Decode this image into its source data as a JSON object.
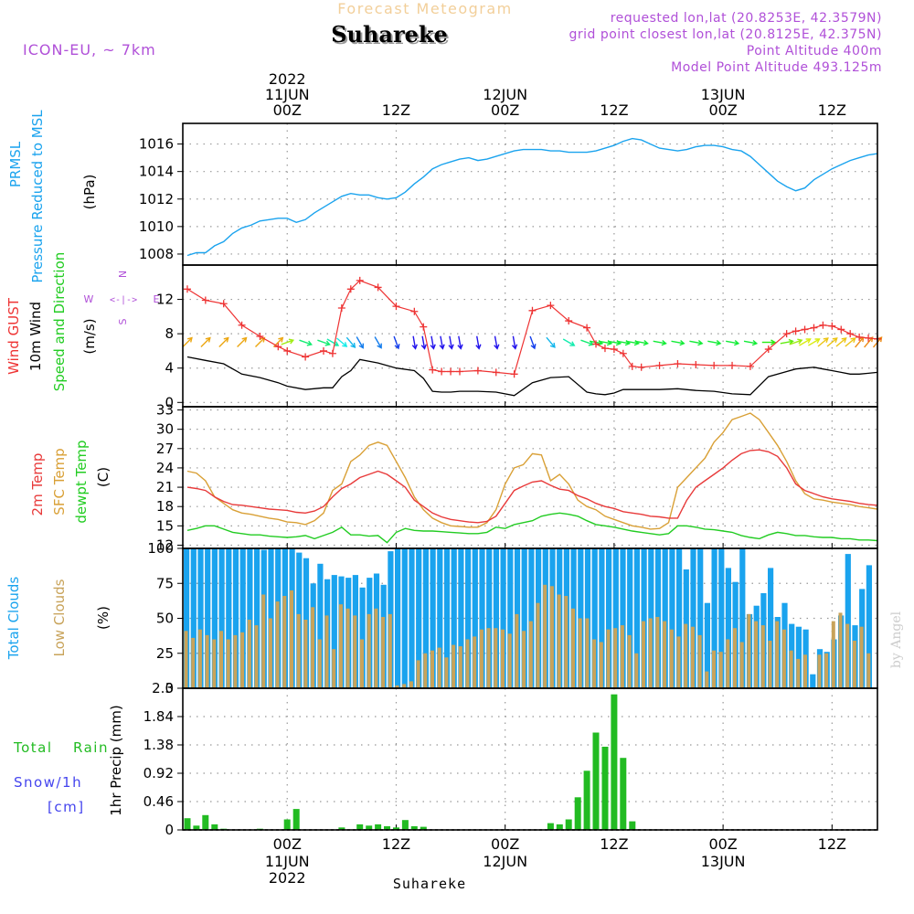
{
  "header": {
    "subtitle": "Forecast Meteogram",
    "location": "Suhareke",
    "model": "ICON-EU, ~ 7km",
    "requested": "requested lon,lat (20.8253E, 42.3579N)",
    "gridpoint": "grid point closest lon,lat (20.8125E, 42.375N)",
    "point_alt": "Point Altitude 400m",
    "model_alt": "Model Point Altitude 493.125m",
    "footer_location": "Suhareke",
    "watermark": "by Angel"
  },
  "time_axis": {
    "top_year": "2022",
    "bottom_year": "2022",
    "ticks": [
      {
        "hour": 0,
        "label": "00Z",
        "date": "11JUN"
      },
      {
        "hour": 12,
        "label": "12Z",
        "date": ""
      },
      {
        "hour": 24,
        "label": "00Z",
        "date": "12JUN"
      },
      {
        "hour": 36,
        "label": "12Z",
        "date": ""
      },
      {
        "hour": 48,
        "label": "00Z",
        "date": "13JUN"
      },
      {
        "hour": 60,
        "label": "12Z",
        "date": ""
      }
    ],
    "range_hours": [
      -11.5,
      65
    ]
  },
  "panel_labels": {
    "p1": [
      "PRMSL",
      "Pressure Reduced to MSL",
      "(hPa)"
    ],
    "p2": [
      "Wind GUST",
      "10m Wind",
      "Speed and Direction",
      "(m/s)"
    ],
    "p2_compass": {
      "n": "N",
      "s": "S",
      "w": "W",
      "e": "E"
    },
    "p3": [
      "2m Temp",
      "SFC Temp",
      "dewpt Temp",
      "(C)"
    ],
    "p4": [
      "Total Clouds",
      "Low Clouds",
      "(%)"
    ],
    "p5": [
      "Total",
      "Rain",
      "Snow/1h",
      "[cm]",
      "1hr Precip (mm)"
    ]
  },
  "colors": {
    "pressure": "#1aa3ee",
    "gust": "#ee3333",
    "wind": "#000000",
    "temp2m": "#e83a3a",
    "sfctemp": "#d9a036",
    "dewpt": "#22cc22",
    "total_clouds": "#1aa3ee",
    "low_clouds": "#c8a35a",
    "rain": "#22bb22",
    "snow": "#4444ee",
    "purple": "#b050d8"
  },
  "chart_data": [
    {
      "type": "line",
      "name": "pressure",
      "ylim": [
        1007.2,
        1017.5
      ],
      "yticks": [
        1008,
        1010,
        1012,
        1014,
        1016
      ],
      "x": [
        -11,
        -10,
        -9,
        -8,
        -7,
        -6,
        -5,
        -4,
        -3,
        -2,
        -1,
        0,
        1,
        2,
        3,
        4,
        5,
        6,
        7,
        8,
        9,
        10,
        11,
        12,
        13,
        14,
        15,
        16,
        17,
        18,
        19,
        20,
        21,
        22,
        23,
        24,
        25,
        26,
        27,
        28,
        29,
        30,
        31,
        32,
        33,
        34,
        35,
        36,
        37,
        38,
        39,
        40,
        41,
        42,
        43,
        44,
        45,
        46,
        47,
        48,
        49,
        50,
        51,
        52,
        53,
        54,
        55,
        56,
        57,
        58,
        59,
        60,
        61,
        62,
        63,
        64,
        65
      ],
      "y": [
        1007.9,
        1008.1,
        1008.1,
        1008.6,
        1008.9,
        1009.5,
        1009.9,
        1010.1,
        1010.4,
        1010.5,
        1010.6,
        1010.6,
        1010.3,
        1010.5,
        1011.0,
        1011.4,
        1011.8,
        1012.2,
        1012.4,
        1012.3,
        1012.3,
        1012.1,
        1012.0,
        1012.1,
        1012.5,
        1013.1,
        1013.6,
        1014.2,
        1014.5,
        1014.7,
        1014.9,
        1015.0,
        1014.8,
        1014.9,
        1015.1,
        1015.3,
        1015.5,
        1015.6,
        1015.6,
        1015.6,
        1015.5,
        1015.5,
        1015.4,
        1015.4,
        1015.4,
        1015.5,
        1015.7,
        1015.9,
        1016.2,
        1016.4,
        1016.3,
        1016.0,
        1015.7,
        1015.6,
        1015.5,
        1015.6,
        1015.8,
        1015.9,
        1015.9,
        1015.8,
        1015.6,
        1015.5,
        1015.1,
        1014.5,
        1013.9,
        1013.3,
        1012.9,
        1012.6,
        1012.8,
        1013.4,
        1013.8,
        1014.2,
        1014.5,
        1014.8,
        1015.0,
        1015.2,
        1015.3
      ]
    },
    {
      "type": "line",
      "name": "wind",
      "ylim": [
        -0.5,
        16
      ],
      "yticks": [
        0,
        4,
        8,
        12
      ],
      "x": [
        -11,
        -9,
        -7,
        -5,
        -3,
        -1,
        0,
        2,
        4,
        5,
        6,
        7,
        8,
        10,
        12,
        14,
        15,
        16,
        17,
        18,
        19,
        21,
        23,
        25,
        27,
        29,
        31,
        33,
        34,
        35,
        36,
        37,
        38,
        39,
        41,
        43,
        45,
        47,
        49,
        51,
        53,
        55,
        56,
        57,
        58,
        59,
        60,
        61,
        62,
        63,
        64,
        65
      ],
      "gust": [
        13.2,
        11.9,
        11.5,
        9.0,
        7.7,
        6.5,
        6.0,
        5.3,
        6.0,
        5.7,
        11.0,
        13.2,
        14.2,
        13.4,
        11.2,
        10.6,
        8.8,
        3.8,
        3.6,
        3.6,
        3.6,
        3.7,
        3.5,
        3.3,
        10.7,
        11.3,
        9.5,
        8.7,
        6.8,
        6.3,
        6.2,
        5.7,
        4.2,
        4.1,
        4.3,
        4.5,
        4.4,
        4.3,
        4.3,
        4.2,
        6.2,
        8.0,
        8.3,
        8.5,
        8.7,
        9.0,
        8.9,
        8.5,
        8.0,
        7.6,
        7.5,
        7.4
      ],
      "wind": [
        5.3,
        4.9,
        4.5,
        3.3,
        2.9,
        2.3,
        1.9,
        1.5,
        1.7,
        1.7,
        3.0,
        3.7,
        5.0,
        4.6,
        4.0,
        3.7,
        2.8,
        1.3,
        1.2,
        1.2,
        1.3,
        1.3,
        1.2,
        0.8,
        2.3,
        2.9,
        3.0,
        1.2,
        1.0,
        0.9,
        1.1,
        1.5,
        1.5,
        1.5,
        1.5,
        1.6,
        1.4,
        1.3,
        1.0,
        0.9,
        3.0,
        3.6,
        3.9,
        4.0,
        4.1,
        3.9,
        3.7,
        3.5,
        3.3,
        3.3,
        3.4,
        3.5
      ],
      "barb_level": 7.0,
      "barb_dirs": [
        225,
        225,
        225,
        225,
        225,
        225,
        250,
        290,
        290,
        300,
        310,
        320,
        330,
        330,
        340,
        350,
        350,
        350,
        350,
        350,
        350,
        350,
        350,
        350,
        340,
        320,
        300,
        290,
        280,
        280,
        280,
        280,
        280,
        280,
        280,
        280,
        280,
        280,
        280,
        280,
        270,
        260,
        250,
        240,
        240,
        230,
        230,
        230,
        230,
        220,
        220,
        220
      ]
    },
    {
      "type": "line",
      "name": "temperature",
      "ylim": [
        11.5,
        33.5
      ],
      "yticks": [
        12,
        15,
        18,
        21,
        24,
        27,
        30,
        33
      ],
      "x": [
        -11,
        -10,
        -9,
        -8,
        -7,
        -6,
        -5,
        -4,
        -3,
        -2,
        -1,
        0,
        1,
        2,
        3,
        4,
        5,
        6,
        7,
        8,
        9,
        10,
        11,
        12,
        13,
        14,
        15,
        16,
        17,
        18,
        19,
        20,
        21,
        22,
        23,
        24,
        25,
        26,
        27,
        28,
        29,
        30,
        31,
        32,
        33,
        34,
        35,
        36,
        37,
        38,
        39,
        40,
        41,
        42,
        43,
        44,
        45,
        46,
        47,
        48,
        49,
        50,
        51,
        52,
        53,
        54,
        55,
        56,
        57,
        58,
        59,
        60,
        61,
        62,
        63,
        64,
        65
      ],
      "t2m": [
        21.0,
        20.8,
        20.5,
        19.5,
        18.8,
        18.3,
        18.2,
        18.0,
        17.8,
        17.6,
        17.5,
        17.4,
        17.1,
        17.0,
        17.3,
        18.0,
        19.5,
        20.8,
        21.5,
        22.5,
        23.0,
        23.5,
        23.0,
        22.0,
        21.0,
        19.0,
        18.0,
        17.0,
        16.4,
        16.0,
        15.8,
        15.6,
        15.5,
        15.7,
        16.5,
        18.5,
        20.5,
        21.2,
        21.8,
        22.0,
        21.3,
        20.7,
        20.5,
        19.7,
        19.2,
        18.5,
        18.0,
        17.7,
        17.2,
        17.0,
        16.8,
        16.5,
        16.4,
        16.2,
        16.2,
        19.0,
        21.0,
        22.0,
        23.0,
        24.0,
        25.2,
        26.2,
        26.7,
        26.8,
        26.5,
        25.8,
        24.0,
        21.5,
        20.5,
        20.0,
        19.5,
        19.2,
        19.0,
        18.8,
        18.5,
        18.3,
        18.2
      ],
      "sfc": [
        23.5,
        23.2,
        22.0,
        19.5,
        18.5,
        17.5,
        17.0,
        16.8,
        16.5,
        16.2,
        16.0,
        15.6,
        15.5,
        15.2,
        15.8,
        17.0,
        20.5,
        21.5,
        25.0,
        26.0,
        27.5,
        28.0,
        27.5,
        25.0,
        22.5,
        19.5,
        17.5,
        16.2,
        15.5,
        15.0,
        14.9,
        14.8,
        14.8,
        15.5,
        17.5,
        21.5,
        24.0,
        24.5,
        26.2,
        26.0,
        22.0,
        23.0,
        21.5,
        19.0,
        18.0,
        17.5,
        16.5,
        16.0,
        15.5,
        15.0,
        14.8,
        14.5,
        14.6,
        15.5,
        21.0,
        22.5,
        24.0,
        25.5,
        28.0,
        29.5,
        31.5,
        32.0,
        32.5,
        31.5,
        29.5,
        27.5,
        25.0,
        22.0,
        20.0,
        19.2,
        19.0,
        18.7,
        18.5,
        18.3,
        18.0,
        17.8,
        17.6
      ],
      "dewpt": [
        14.3,
        14.6,
        15.0,
        15.0,
        14.5,
        14.0,
        13.8,
        13.6,
        13.6,
        13.4,
        13.3,
        13.2,
        13.3,
        13.5,
        13.0,
        13.5,
        14.0,
        14.8,
        13.6,
        13.6,
        13.4,
        13.5,
        12.4,
        14.0,
        14.6,
        14.3,
        14.2,
        14.2,
        14.1,
        14.0,
        13.9,
        13.8,
        13.8,
        14.0,
        14.8,
        14.6,
        15.2,
        15.5,
        15.8,
        16.5,
        16.8,
        17.0,
        16.8,
        16.5,
        15.8,
        15.2,
        15.0,
        14.8,
        14.5,
        14.2,
        14.0,
        13.8,
        13.6,
        13.8,
        15.0,
        15.0,
        14.8,
        14.5,
        14.4,
        14.2,
        14.0,
        13.5,
        13.2,
        13.0,
        13.6,
        14.0,
        13.8,
        13.5,
        13.5,
        13.3,
        13.2,
        13.2,
        13.0,
        13.0,
        12.8,
        12.8,
        12.7
      ]
    },
    {
      "type": "bar",
      "name": "clouds",
      "ylim": [
        0,
        100
      ],
      "yticks": [
        0,
        25,
        50,
        75,
        100
      ],
      "x_start": -11,
      "total": [
        100,
        100,
        100,
        100,
        100,
        100,
        100,
        100,
        100,
        100,
        100,
        99,
        100,
        100,
        100,
        100,
        97,
        93,
        75,
        89,
        78,
        81,
        80,
        79,
        81,
        72,
        79,
        82,
        74,
        98,
        100,
        100,
        100,
        100,
        100,
        100,
        100,
        100,
        100,
        100,
        100,
        100,
        100,
        100,
        100,
        100,
        100,
        100,
        100,
        100,
        100,
        100,
        100,
        100,
        100,
        100,
        100,
        100,
        100,
        100,
        100,
        100,
        100,
        100,
        100,
        100,
        100,
        100,
        100,
        100,
        100,
        85,
        100,
        100,
        61,
        100,
        100,
        86,
        76,
        100,
        53,
        59,
        68,
        86,
        51,
        61,
        46,
        44,
        42,
        10,
        28,
        26,
        35,
        52,
        96,
        45,
        71,
        88
      ],
      "low": [
        41,
        36,
        42,
        38,
        35,
        41,
        35,
        38,
        40,
        49,
        45,
        67,
        50,
        62,
        66,
        70,
        53,
        49,
        58,
        35,
        52,
        28,
        60,
        57,
        52,
        35,
        53,
        57,
        51,
        53,
        2,
        3,
        5,
        20,
        25,
        27,
        29,
        22,
        31,
        30,
        35,
        37,
        42,
        43,
        43,
        42,
        39,
        53,
        41,
        48,
        61,
        74,
        73,
        67,
        66,
        57,
        50,
        50,
        35,
        33,
        42,
        43,
        45,
        38,
        25,
        48,
        50,
        51,
        48,
        42,
        37,
        46,
        44,
        38,
        12,
        27,
        26,
        35,
        43,
        33,
        53,
        48,
        45,
        34,
        48,
        42,
        27,
        21,
        24,
        0,
        24,
        25,
        48,
        54,
        46,
        34,
        44,
        25
      ]
    },
    {
      "type": "bar",
      "name": "precip",
      "ylim": [
        0,
        2.3
      ],
      "yticks": [
        0,
        0.46,
        0.92,
        1.38,
        1.84,
        2.3
      ],
      "ytick_labels": [
        "0",
        "0.46",
        "0.92",
        "1.38",
        "1.84",
        "2.3"
      ],
      "x": [
        -11,
        -10,
        -9,
        -8,
        -7,
        -3,
        0,
        1,
        6,
        8,
        9,
        10,
        11,
        12,
        13,
        14,
        15,
        29,
        30,
        31,
        32,
        33,
        34,
        35,
        36,
        37,
        38,
        39,
        40
      ],
      "rain": [
        0.19,
        0.07,
        0.24,
        0.09,
        0.02,
        0.02,
        0.17,
        0.34,
        0.04,
        0.09,
        0.07,
        0.09,
        0.06,
        0.04,
        0.16,
        0.06,
        0.05,
        0.11,
        0.09,
        0.17,
        0.53,
        0.96,
        1.58,
        1.35,
        2.2,
        1.17,
        0.14,
        0,
        0
      ]
    }
  ]
}
